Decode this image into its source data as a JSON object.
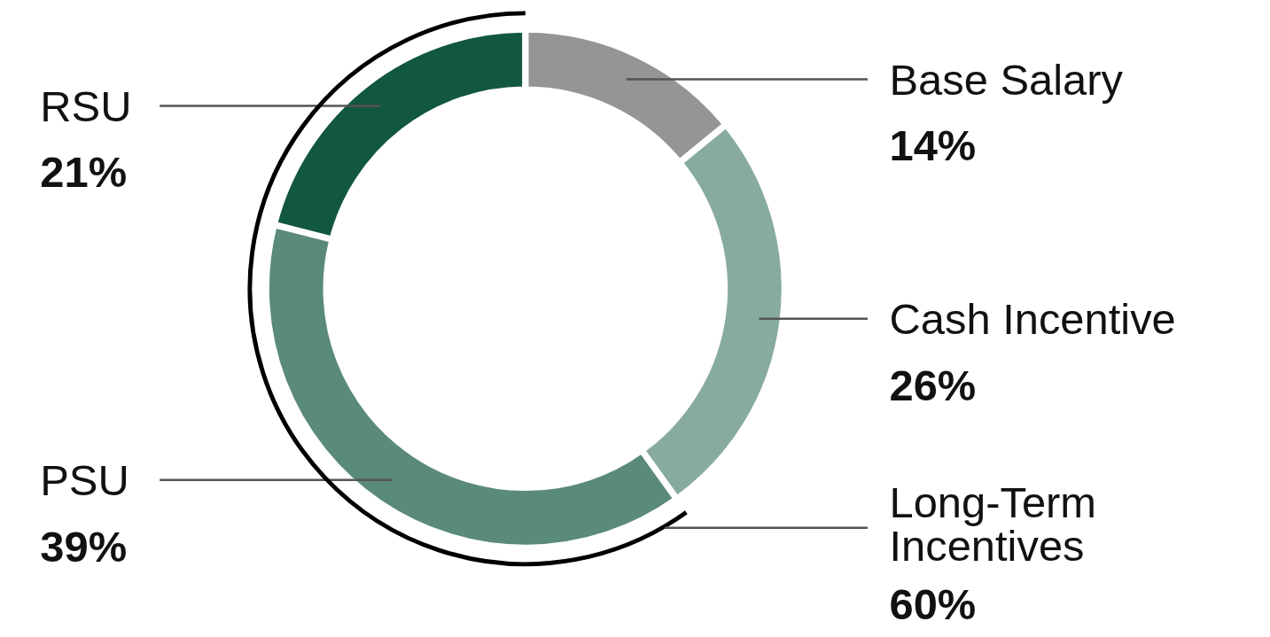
{
  "chart_data": {
    "type": "donut",
    "categories": [
      "Base Salary",
      "Cash Incentive",
      "PSU",
      "RSU"
    ],
    "values": [
      14,
      26,
      39,
      21
    ],
    "colors": [
      "#959595",
      "#88ab9f",
      "#5a8a79",
      "#12573f"
    ],
    "value_labels": [
      "14%",
      "26%",
      "39%",
      "21%"
    ],
    "annotations": [
      "Long-Term Incentives 60%"
    ]
  }
}
